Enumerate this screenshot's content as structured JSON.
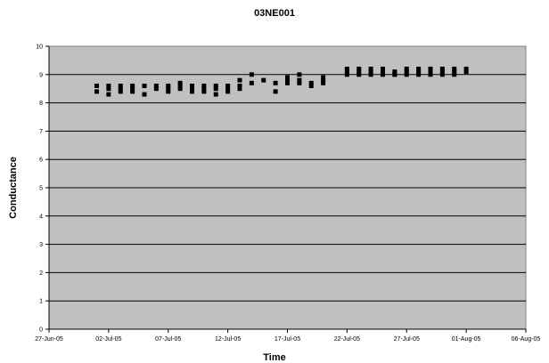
{
  "chart_data": {
    "type": "scatter",
    "title": "03NE001",
    "xlabel": "Time",
    "ylabel": "Conductance",
    "x_ticks": [
      "27-Jun-05",
      "02-Jul-05",
      "07-Jul-05",
      "12-Jul-05",
      "17-Jul-05",
      "22-Jul-05",
      "27-Jul-05",
      "01-Aug-05",
      "06-Aug-05"
    ],
    "xlim": [
      "2005-06-27",
      "2005-08-06"
    ],
    "ylim": [
      0,
      10
    ],
    "y_ticks": [
      0,
      1,
      2,
      3,
      4,
      5,
      6,
      7,
      8,
      9,
      10
    ],
    "grid": "horizontal",
    "colors": {
      "plot_bg": "#c0c0c0",
      "marker": "#000000",
      "grid": "#000000"
    },
    "series": [
      {
        "marker": "square",
        "x": [
          "2005-07-01",
          "2005-07-01",
          "2005-07-02",
          "2005-07-02",
          "2005-07-02",
          "2005-07-03",
          "2005-07-03",
          "2005-07-03",
          "2005-07-04",
          "2005-07-04",
          "2005-07-04",
          "2005-07-05",
          "2005-07-05",
          "2005-07-06",
          "2005-07-06",
          "2005-07-07",
          "2005-07-07",
          "2005-07-07",
          "2005-07-08",
          "2005-07-08",
          "2005-07-08",
          "2005-07-09",
          "2005-07-09",
          "2005-07-09",
          "2005-07-10",
          "2005-07-10",
          "2005-07-10",
          "2005-07-11",
          "2005-07-11",
          "2005-07-11",
          "2005-07-12",
          "2005-07-12",
          "2005-07-12",
          "2005-07-13",
          "2005-07-13",
          "2005-07-13",
          "2005-07-14",
          "2005-07-14",
          "2005-07-15",
          "2005-07-16",
          "2005-07-16",
          "2005-07-17",
          "2005-07-17",
          "2005-07-17",
          "2005-07-18",
          "2005-07-18",
          "2005-07-18",
          "2005-07-19",
          "2005-07-19",
          "2005-07-20",
          "2005-07-20",
          "2005-07-20",
          "2005-07-22",
          "2005-07-22",
          "2005-07-22",
          "2005-07-23",
          "2005-07-23",
          "2005-07-23",
          "2005-07-24",
          "2005-07-24",
          "2005-07-24",
          "2005-07-25",
          "2005-07-25",
          "2005-07-25",
          "2005-07-26",
          "2005-07-26",
          "2005-07-26",
          "2005-07-27",
          "2005-07-27",
          "2005-07-27",
          "2005-07-28",
          "2005-07-28",
          "2005-07-28",
          "2005-07-29",
          "2005-07-29",
          "2005-07-29",
          "2005-07-30",
          "2005-07-30",
          "2005-07-30",
          "2005-07-31",
          "2005-07-31",
          "2005-07-31",
          "2005-08-01",
          "2005-08-01"
        ],
        "y": [
          8.4,
          8.6,
          8.5,
          8.3,
          8.6,
          8.4,
          8.6,
          8.5,
          8.5,
          8.4,
          8.6,
          8.3,
          8.6,
          8.6,
          8.5,
          8.5,
          8.6,
          8.4,
          8.6,
          8.5,
          8.7,
          8.5,
          8.6,
          8.4,
          8.5,
          8.6,
          8.4,
          8.6,
          8.3,
          8.5,
          8.4,
          8.5,
          8.6,
          8.6,
          8.5,
          8.8,
          8.7,
          9.0,
          8.8,
          8.7,
          8.4,
          8.7,
          8.9,
          8.8,
          9.0,
          8.7,
          8.8,
          8.7,
          8.6,
          8.7,
          8.8,
          8.9,
          9.1,
          9.2,
          9.0,
          9.2,
          9.0,
          9.1,
          9.1,
          9.0,
          9.2,
          9.2,
          9.0,
          9.1,
          9.0,
          9.1,
          9.0,
          9.0,
          9.2,
          9.1,
          9.0,
          9.1,
          9.2,
          9.1,
          9.0,
          9.2,
          9.2,
          9.0,
          9.1,
          9.1,
          9.0,
          9.2,
          9.2,
          9.1
        ]
      }
    ]
  }
}
